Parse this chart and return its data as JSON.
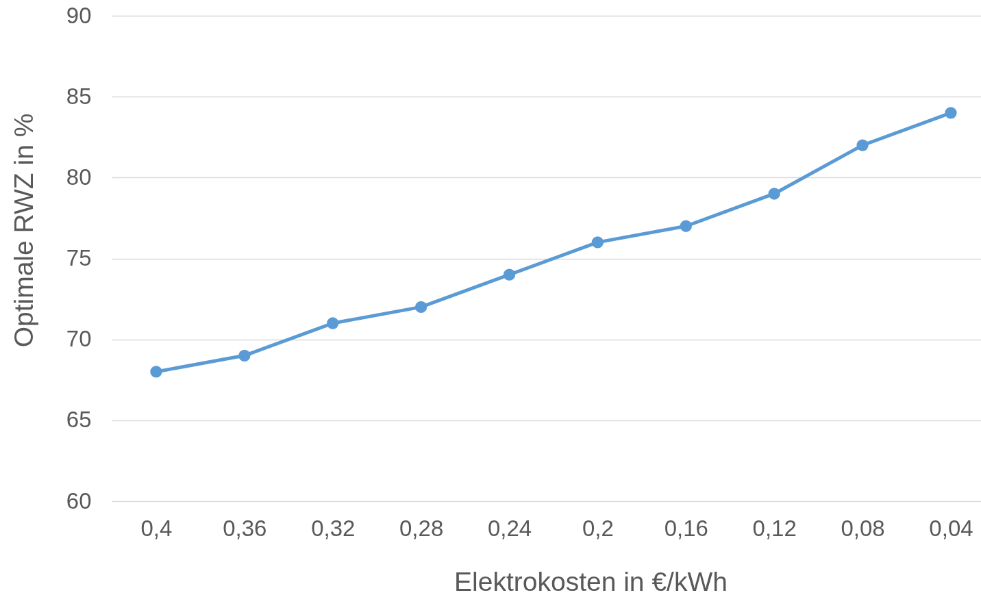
{
  "chart_data": {
    "type": "line",
    "xlabel": "Elektrokosten in €/kWh",
    "ylabel": "Optimale RWZ in %",
    "categories": [
      "0,4",
      "0,36",
      "0,32",
      "0,28",
      "0,24",
      "0,2",
      "0,16",
      "0,12",
      "0,08",
      "0,04"
    ],
    "series": [
      {
        "color": "#5b9bd5",
        "values": [
          68,
          69,
          71,
          72,
          74,
          76,
          77,
          79,
          82,
          84
        ]
      }
    ],
    "ylim": [
      60,
      90
    ],
    "yticks": [
      60,
      65,
      70,
      75,
      80,
      85,
      90
    ],
    "grid": "y",
    "marker": "circle"
  }
}
